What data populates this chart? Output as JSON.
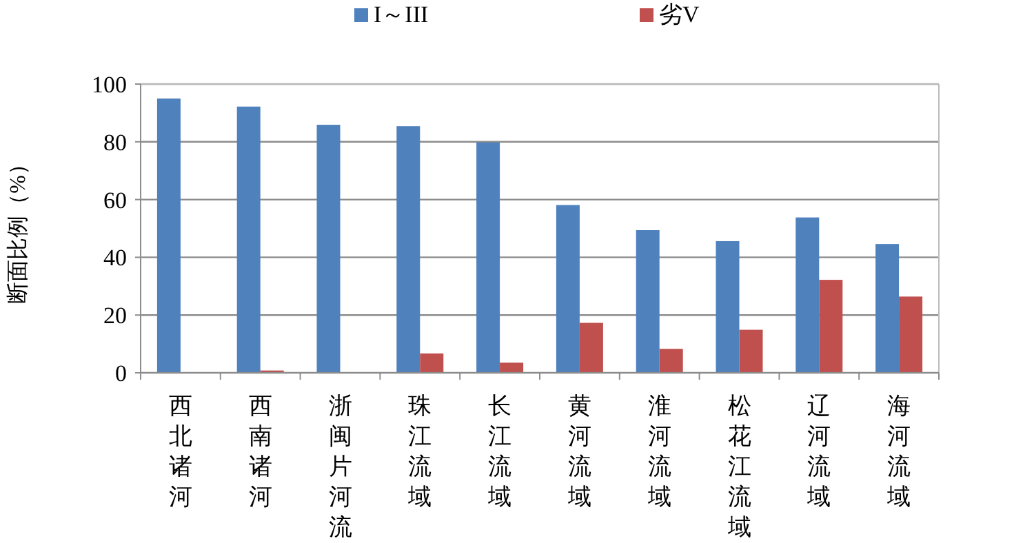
{
  "chart_data": {
    "type": "bar",
    "ylabel": "断面比例（%）",
    "categories": [
      "西北诸河",
      "西南诸河",
      "浙闽片河流",
      "珠江流域",
      "长江流域",
      "黄河流域",
      "淮河流域",
      "松花江流域",
      "辽河流域",
      "海河流域"
    ],
    "series": [
      {
        "name": "I～III",
        "color": "#4f81bd",
        "values": [
          95.0,
          92.2,
          85.9,
          85.4,
          79.8,
          58.1,
          49.4,
          45.6,
          53.8,
          44.6
        ]
      },
      {
        "name": "劣V",
        "color": "#c0504d",
        "values": [
          0,
          0.8,
          0,
          6.7,
          3.5,
          17.3,
          8.3,
          14.9,
          32.2,
          26.4
        ]
      }
    ],
    "ylim": [
      0,
      100
    ],
    "yticks": [
      0,
      20,
      40,
      60,
      80,
      100
    ],
    "grid": "y",
    "legend": "top"
  }
}
